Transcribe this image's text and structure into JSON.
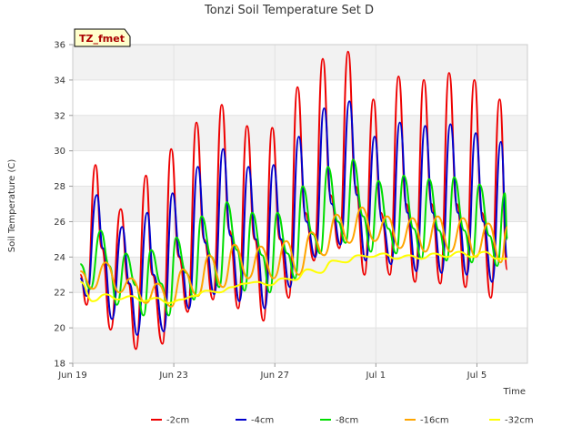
{
  "chart_data": {
    "type": "line",
    "title": "Tonzi Soil Temperature Set D",
    "xlabel": "Time",
    "ylabel": "Soil Temperature (C)",
    "badge": "TZ_fmet",
    "xlim": [
      0,
      18
    ],
    "ylim": [
      18,
      36
    ],
    "x_ticks": [
      {
        "x": 0,
        "label": "Jun 19"
      },
      {
        "x": 4,
        "label": "Jun 23"
      },
      {
        "x": 8,
        "label": "Jun 27"
      },
      {
        "x": 12,
        "label": "Jul 1"
      },
      {
        "x": 16,
        "label": "Jul 5"
      }
    ],
    "y_ticks": [
      18,
      20,
      22,
      24,
      26,
      28,
      30,
      32,
      34,
      36
    ],
    "grid": true,
    "legend_position": "bottom",
    "series": [
      {
        "name": "-2cm",
        "color": "#ee0000",
        "x": [
          0.3,
          0.55,
          0.9,
          1.15,
          1.5,
          1.9,
          2.2,
          2.5,
          2.9,
          3.15,
          3.55,
          3.9,
          4.2,
          4.55,
          4.9,
          5.2,
          5.55,
          5.9,
          6.2,
          6.55,
          6.9,
          7.2,
          7.55,
          7.9,
          8.2,
          8.55,
          8.9,
          9.2,
          9.55,
          9.9,
          10.2,
          10.55,
          10.9,
          11.2,
          11.55,
          11.9,
          12.2,
          12.55,
          12.9,
          13.2,
          13.55,
          13.9,
          14.2,
          14.55,
          14.9,
          15.2,
          15.55,
          15.9,
          16.2,
          16.55,
          16.9,
          17.2
        ],
        "y": [
          23.0,
          21.3,
          29.2,
          24.5,
          19.9,
          26.7,
          22.5,
          18.8,
          28.6,
          23.0,
          19.1,
          30.1,
          24.0,
          20.9,
          31.6,
          25.0,
          21.6,
          32.6,
          25.5,
          21.1,
          31.4,
          25.0,
          20.4,
          31.3,
          25.0,
          21.7,
          33.6,
          26.5,
          23.8,
          35.2,
          27.5,
          24.5,
          35.6,
          28.0,
          23.0,
          32.9,
          26.5,
          23.0,
          34.2,
          27.0,
          22.6,
          34.0,
          27.0,
          22.5,
          34.4,
          27.0,
          22.3,
          34.0,
          26.5,
          21.7,
          32.9,
          23.3
        ]
      },
      {
        "name": "-4cm",
        "color": "#0000cc",
        "x": [
          0.3,
          0.55,
          0.95,
          1.2,
          1.55,
          1.95,
          2.25,
          2.55,
          2.95,
          3.2,
          3.6,
          3.95,
          4.25,
          4.6,
          4.95,
          5.25,
          5.6,
          5.95,
          6.25,
          6.6,
          6.95,
          7.25,
          7.6,
          7.95,
          8.25,
          8.6,
          8.95,
          9.25,
          9.6,
          9.95,
          10.25,
          10.6,
          10.95,
          11.25,
          11.6,
          11.95,
          12.25,
          12.6,
          12.95,
          13.25,
          13.6,
          13.95,
          14.25,
          14.6,
          14.95,
          15.25,
          15.6,
          15.95,
          16.25,
          16.6,
          16.95,
          17.2
        ],
        "y": [
          22.8,
          21.8,
          27.5,
          24.5,
          20.5,
          25.7,
          22.5,
          19.6,
          26.5,
          23.0,
          19.8,
          27.6,
          24.0,
          21.1,
          29.1,
          24.8,
          21.9,
          30.1,
          25.2,
          21.5,
          29.1,
          25.0,
          21.1,
          29.2,
          25.0,
          22.3,
          30.8,
          26.0,
          24.0,
          32.4,
          27.0,
          24.7,
          32.8,
          27.5,
          23.8,
          30.8,
          26.0,
          23.6,
          31.6,
          26.5,
          23.2,
          31.4,
          26.5,
          23.1,
          31.5,
          26.5,
          23.0,
          31.0,
          26.0,
          22.6,
          30.5,
          24.0
        ]
      },
      {
        "name": "-8cm",
        "color": "#00dd00",
        "x": [
          0.3,
          0.7,
          1.1,
          1.45,
          1.75,
          2.1,
          2.5,
          2.8,
          3.1,
          3.5,
          3.8,
          4.1,
          4.5,
          4.8,
          5.1,
          5.5,
          5.8,
          6.1,
          6.5,
          6.8,
          7.1,
          7.5,
          7.8,
          8.1,
          8.5,
          8.8,
          9.1,
          9.5,
          9.8,
          10.1,
          10.5,
          10.8,
          11.1,
          11.5,
          11.8,
          12.1,
          12.5,
          12.8,
          13.1,
          13.5,
          13.8,
          14.1,
          14.5,
          14.8,
          15.1,
          15.5,
          15.8,
          16.1,
          16.5,
          16.8,
          17.1,
          17.2
        ],
        "y": [
          23.6,
          22.2,
          25.5,
          23.5,
          21.3,
          24.2,
          22.4,
          20.7,
          24.4,
          22.5,
          20.7,
          25.1,
          23.1,
          21.6,
          26.3,
          24.0,
          22.3,
          27.1,
          24.4,
          22.1,
          26.5,
          24.1,
          22.0,
          26.5,
          24.2,
          22.8,
          28.0,
          25.3,
          24.2,
          29.1,
          26.0,
          24.8,
          29.5,
          26.3,
          24.3,
          28.3,
          25.6,
          24.2,
          28.6,
          25.6,
          23.9,
          28.4,
          25.5,
          23.8,
          28.5,
          25.5,
          23.7,
          28.1,
          25.2,
          23.5,
          27.6,
          25.0
        ]
      },
      {
        "name": "-16cm",
        "color": "#ffa500",
        "x": [
          0.3,
          0.8,
          1.3,
          1.85,
          2.3,
          2.9,
          3.35,
          3.9,
          4.35,
          4.95,
          5.4,
          5.95,
          6.4,
          6.95,
          7.45,
          7.95,
          8.45,
          8.95,
          9.45,
          9.95,
          10.45,
          10.95,
          11.45,
          11.95,
          12.45,
          12.95,
          13.45,
          13.95,
          14.45,
          14.95,
          15.45,
          15.95,
          16.45,
          16.95,
          17.2
        ],
        "y": [
          23.2,
          22.2,
          23.7,
          22.0,
          22.8,
          21.4,
          22.5,
          21.2,
          23.3,
          21.8,
          24.1,
          22.3,
          24.7,
          22.8,
          24.6,
          22.8,
          24.9,
          23.0,
          25.4,
          24.1,
          26.4,
          24.8,
          26.8,
          24.9,
          26.3,
          24.5,
          26.2,
          24.3,
          26.3,
          24.3,
          26.2,
          24.0,
          25.9,
          23.7,
          25.7
        ]
      },
      {
        "name": "-32cm",
        "color": "#ffff00",
        "x": [
          0.3,
          0.8,
          1.3,
          1.8,
          2.3,
          2.8,
          3.3,
          3.8,
          4.3,
          4.8,
          5.3,
          5.8,
          6.3,
          6.8,
          7.3,
          7.8,
          8.3,
          8.8,
          9.3,
          9.8,
          10.3,
          10.8,
          11.3,
          11.8,
          12.3,
          12.8,
          13.3,
          13.8,
          14.3,
          14.8,
          15.3,
          15.8,
          16.3,
          16.8,
          17.2
        ],
        "y": [
          22.6,
          21.5,
          21.9,
          21.6,
          21.8,
          21.5,
          21.7,
          21.4,
          21.6,
          21.8,
          22.1,
          22.0,
          22.3,
          22.5,
          22.6,
          22.4,
          22.8,
          22.7,
          23.3,
          23.1,
          23.8,
          23.7,
          24.1,
          24.0,
          24.2,
          23.9,
          24.1,
          23.9,
          24.2,
          24.0,
          24.3,
          24.0,
          24.3,
          23.9,
          23.9
        ]
      }
    ]
  }
}
